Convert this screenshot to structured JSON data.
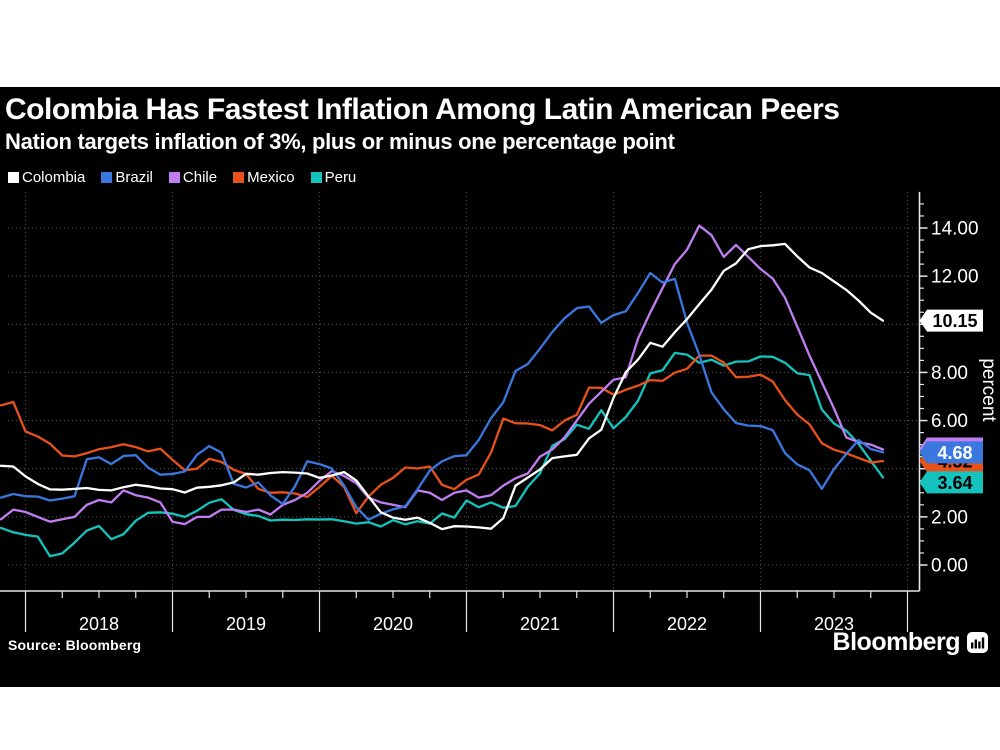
{
  "header": {
    "title": "Colombia Has Fastest Inflation Among Latin American Peers",
    "subtitle": "Nation targets inflation of 3%, plus or minus one percentage point"
  },
  "legend": [
    {
      "label": "Colombia",
      "color": "#ffffff"
    },
    {
      "label": "Brazil",
      "color": "#3a78e0"
    },
    {
      "label": "Chile",
      "color": "#c07ef2"
    },
    {
      "label": "Mexico",
      "color": "#e8521a"
    },
    {
      "label": "Peru",
      "color": "#14c3bd"
    }
  ],
  "chart_data": {
    "type": "line",
    "title": "Colombia Has Fastest Inflation Among Latin American Peers",
    "subtitle": "Nation targets inflation of 3%, plus or minus one percentage point",
    "ylabel": "percent",
    "x_start": "2017-11",
    "x_end": "2023-11",
    "frequency": "monthly",
    "ylim": [
      0,
      15.5
    ],
    "y_tick_step": 2,
    "y_minor_step": 0.5,
    "y_tick_labels": [
      "0.00",
      "2.00",
      "4.00",
      "6.00",
      "8.00",
      "10.00",
      "12.00",
      "14.00"
    ],
    "x_tick_years": [
      "2018",
      "2019",
      "2020",
      "2021",
      "2022",
      "2023"
    ],
    "grid": "dotted",
    "legend_position": "top-left",
    "colors": {
      "background": "#000000",
      "grid": "#4f4f4f",
      "axis": "#e6e6e6",
      "text": "#ffffff"
    },
    "series": [
      {
        "name": "Colombia",
        "color": "#ffffff",
        "values": [
          4.12,
          4.09,
          3.68,
          3.37,
          3.14,
          3.13,
          3.16,
          3.2,
          3.12,
          3.1,
          3.23,
          3.33,
          3.27,
          3.18,
          3.15,
          3.01,
          3.21,
          3.25,
          3.31,
          3.43,
          3.79,
          3.75,
          3.82,
          3.86,
          3.84,
          3.8,
          3.62,
          3.72,
          3.86,
          3.51,
          2.85,
          2.19,
          1.97,
          1.88,
          1.97,
          1.75,
          1.49,
          1.61,
          1.6,
          1.56,
          1.51,
          1.95,
          3.3,
          3.63,
          3.97,
          4.44,
          4.51,
          4.58,
          5.26,
          5.62,
          6.94,
          8.01,
          8.53,
          9.23,
          9.07,
          9.67,
          10.21,
          10.84,
          11.44,
          12.22,
          12.53,
          13.12,
          13.25,
          13.28,
          13.34,
          12.82,
          12.36,
          12.13,
          11.78,
          11.43,
          10.99,
          10.48,
          10.15
        ]
      },
      {
        "name": "Brazil",
        "color": "#3a78e0",
        "values": [
          2.8,
          2.95,
          2.86,
          2.84,
          2.68,
          2.76,
          2.86,
          4.39,
          4.48,
          4.19,
          4.53,
          4.56,
          4.05,
          3.75,
          3.78,
          3.89,
          4.58,
          4.94,
          4.66,
          3.37,
          3.22,
          3.43,
          2.89,
          2.54,
          3.27,
          4.31,
          4.19,
          4.01,
          3.3,
          2.4,
          1.88,
          2.13,
          2.31,
          2.44,
          3.14,
          3.92,
          4.31,
          4.52,
          4.56,
          5.2,
          6.1,
          6.76,
          8.06,
          8.35,
          8.99,
          9.68,
          10.25,
          10.67,
          10.74,
          10.06,
          10.38,
          10.54,
          11.3,
          12.13,
          11.73,
          11.89,
          10.07,
          8.73,
          7.17,
          6.47,
          5.9,
          5.79,
          5.77,
          5.6,
          4.65,
          4.18,
          3.94,
          3.16,
          3.99,
          4.61,
          5.19,
          4.82,
          4.68
        ]
      },
      {
        "name": "Chile",
        "color": "#c07ef2",
        "values": [
          1.9,
          2.3,
          2.2,
          2.0,
          1.8,
          1.9,
          2.0,
          2.5,
          2.7,
          2.6,
          3.1,
          2.9,
          2.8,
          2.6,
          1.8,
          1.7,
          2.0,
          2.0,
          2.3,
          2.3,
          2.2,
          2.3,
          2.1,
          2.5,
          2.7,
          3.0,
          3.5,
          3.9,
          3.7,
          3.4,
          2.8,
          2.6,
          2.5,
          2.4,
          3.1,
          3.0,
          2.7,
          3.0,
          3.1,
          2.8,
          2.9,
          3.3,
          3.6,
          3.8,
          4.5,
          4.8,
          5.3,
          6.0,
          6.7,
          7.2,
          7.7,
          7.8,
          9.4,
          10.5,
          11.5,
          12.5,
          13.1,
          14.1,
          13.7,
          12.8,
          13.3,
          12.8,
          12.3,
          11.9,
          11.1,
          9.9,
          8.7,
          7.6,
          6.5,
          5.3,
          5.1,
          5.0,
          4.8
        ]
      },
      {
        "name": "Mexico",
        "color": "#e8521a",
        "values": [
          6.63,
          6.77,
          5.55,
          5.34,
          5.04,
          4.55,
          4.51,
          4.65,
          4.81,
          4.9,
          5.02,
          4.9,
          4.72,
          4.83,
          4.37,
          3.94,
          4.0,
          4.41,
          4.28,
          3.95,
          3.78,
          3.16,
          3.0,
          3.02,
          2.97,
          2.83,
          3.24,
          3.7,
          3.25,
          2.15,
          2.84,
          3.33,
          3.62,
          4.05,
          4.01,
          4.09,
          3.33,
          3.15,
          3.54,
          3.76,
          4.67,
          6.08,
          5.89,
          5.88,
          5.81,
          5.59,
          6.0,
          6.24,
          7.37,
          7.36,
          7.07,
          7.28,
          7.45,
          7.68,
          7.65,
          7.99,
          8.15,
          8.7,
          8.7,
          8.41,
          7.8,
          7.82,
          7.91,
          7.62,
          6.85,
          6.25,
          5.84,
          5.06,
          4.79,
          4.64,
          4.45,
          4.26,
          4.32
        ]
      },
      {
        "name": "Peru",
        "color": "#14c3bd",
        "values": [
          1.54,
          1.36,
          1.25,
          1.18,
          0.36,
          0.48,
          0.93,
          1.43,
          1.62,
          1.07,
          1.28,
          1.84,
          2.17,
          2.19,
          2.13,
          2.0,
          2.25,
          2.59,
          2.73,
          2.29,
          2.11,
          2.04,
          1.85,
          1.88,
          1.87,
          1.9,
          1.89,
          1.9,
          1.82,
          1.72,
          1.78,
          1.6,
          1.86,
          1.69,
          1.82,
          1.72,
          2.14,
          1.97,
          2.68,
          2.4,
          2.6,
          2.38,
          2.45,
          3.25,
          3.81,
          4.95,
          5.23,
          5.83,
          5.66,
          6.43,
          5.68,
          6.15,
          6.82,
          7.96,
          8.09,
          8.81,
          8.74,
          8.4,
          8.53,
          8.28,
          8.45,
          8.46,
          8.66,
          8.65,
          8.4,
          7.97,
          7.89,
          6.46,
          5.88,
          5.58,
          5.04,
          4.33,
          3.64
        ]
      }
    ],
    "badges": [
      {
        "series": "Chile",
        "label": "",
        "value": 4.8,
        "bg": "#c07ef2",
        "fg": "#000000"
      },
      {
        "series": "Mexico",
        "label": "4.32",
        "value": 4.32,
        "bg": "#e8521a",
        "fg": "#000000"
      },
      {
        "series": "Brazil",
        "label": "4.68",
        "value": 4.68,
        "bg": "#3a78e0",
        "fg": "#ffffff"
      },
      {
        "series": "Peru",
        "label": "3.64",
        "value": 3.64,
        "bg": "#14c3bd",
        "fg": "#000000"
      },
      {
        "series": "Colombia",
        "label": "10.15",
        "value": 10.15,
        "bg": "#ffffff",
        "fg": "#000000"
      }
    ]
  },
  "footer": {
    "source": "Source: Bloomberg",
    "logo_text": "Bloomberg"
  }
}
